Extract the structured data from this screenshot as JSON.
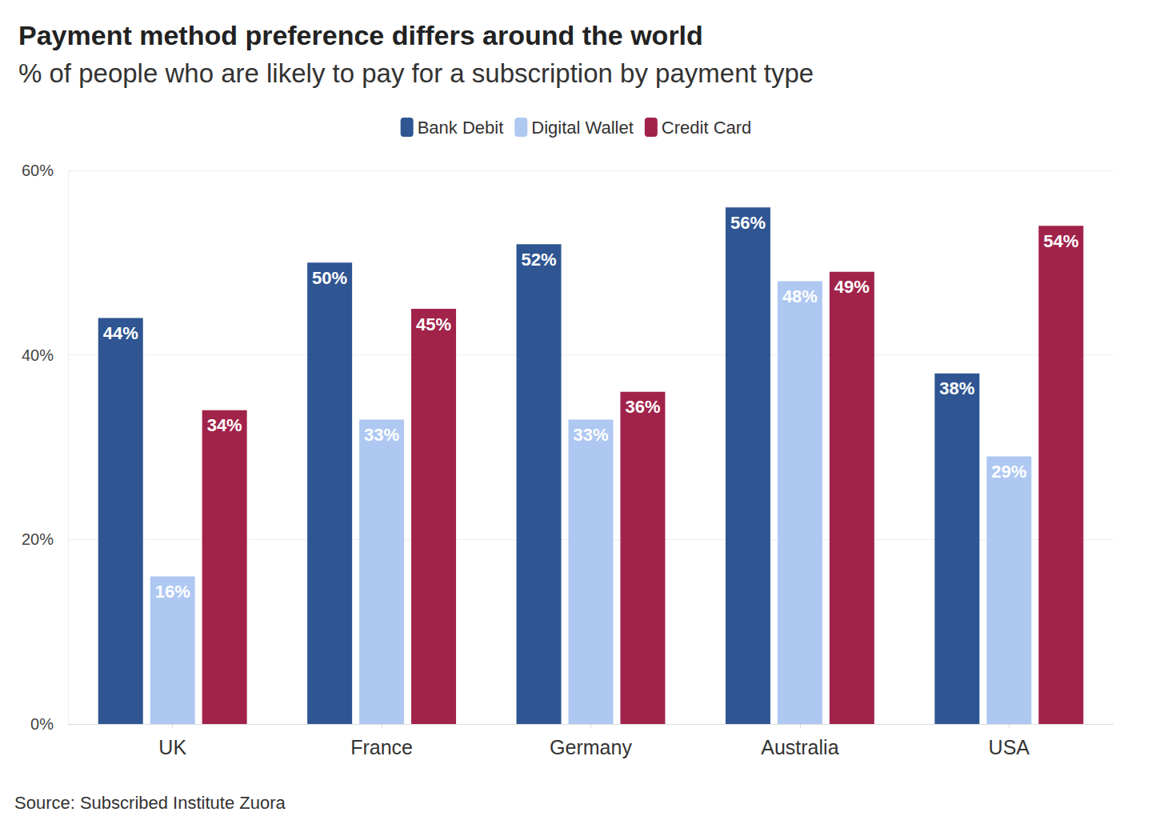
{
  "chart_data": {
    "type": "bar",
    "title": "Payment method preference differs around the world",
    "subtitle": "% of people who are likely to pay for a subscription by payment type",
    "source": "Source: Subscribed Institute Zuora",
    "categories": [
      "UK",
      "France",
      "Germany",
      "Australia",
      "USA"
    ],
    "series": [
      {
        "name": "Bank Debit",
        "color": "#2f5592",
        "values": [
          44,
          50,
          52,
          56,
          38
        ],
        "value_labels": [
          "44%",
          "50%",
          "52%",
          "56%",
          "38%"
        ]
      },
      {
        "name": "Digital Wallet",
        "color": "#aec8f2",
        "values": [
          16,
          33,
          33,
          48,
          29
        ],
        "value_labels": [
          "16%",
          "33%",
          "33%",
          "48%",
          "29%"
        ]
      },
      {
        "name": "Credit Card",
        "color": "#a1234a",
        "values": [
          34,
          45,
          36,
          49,
          54
        ],
        "value_labels": [
          "34%",
          "45%",
          "36%",
          "49%",
          "54%"
        ]
      }
    ],
    "ylim": [
      0,
      60
    ],
    "yticks": [
      {
        "value": 0,
        "label": "0%"
      },
      {
        "value": 20,
        "label": "20%"
      },
      {
        "value": 40,
        "label": "40%"
      },
      {
        "value": 60,
        "label": "60%"
      }
    ],
    "grid": true,
    "legend": "top",
    "data_labels": true
  }
}
